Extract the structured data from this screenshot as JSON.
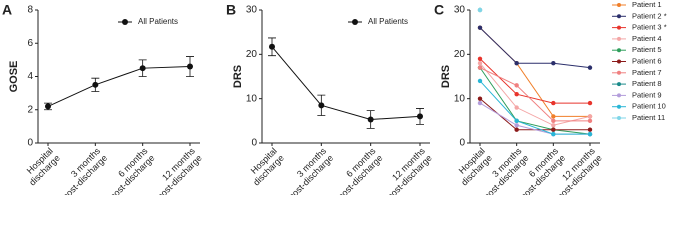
{
  "chart_data": [
    {
      "type": "line",
      "panel": "A",
      "ylabel": "GOSE",
      "categories": [
        [
          "Hospital",
          "discharge"
        ],
        [
          "3 months",
          "post-discharge"
        ],
        [
          "6 months",
          "post-discharge"
        ],
        [
          "12 months",
          "post-discharge"
        ]
      ],
      "ylim": [
        0,
        8
      ],
      "yticks": [
        0,
        2,
        4,
        6,
        8
      ],
      "legend": "upper right",
      "series": [
        {
          "name": "All Patients",
          "color": "#111111",
          "values": [
            2.2,
            3.5,
            4.5,
            4.6
          ],
          "errors": [
            0.2,
            0.4,
            0.5,
            0.6
          ]
        }
      ]
    },
    {
      "type": "line",
      "panel": "B",
      "ylabel": "DRS",
      "categories": [
        [
          "Hospital",
          "discharge"
        ],
        [
          "3 months",
          "post-discharge"
        ],
        [
          "6 months",
          "post-discharge"
        ],
        [
          "12 months",
          "post-discharge"
        ]
      ],
      "ylim": [
        0,
        30
      ],
      "yticks": [
        0,
        10,
        20,
        30
      ],
      "legend": "upper right",
      "series": [
        {
          "name": "All Patients",
          "color": "#111111",
          "values": [
            21.7,
            8.5,
            5.3,
            6.0
          ],
          "errors": [
            2.0,
            2.3,
            2.0,
            1.8
          ]
        }
      ]
    },
    {
      "type": "line",
      "panel": "C",
      "ylabel": "DRS",
      "categories": [
        [
          "Hospital",
          "discharge"
        ],
        [
          "3 months",
          "post-discharge"
        ],
        [
          "6 months",
          "post-discharge"
        ],
        [
          "12 months",
          "post-discharge"
        ]
      ],
      "ylim": [
        0,
        30
      ],
      "yticks": [
        0,
        10,
        20,
        30
      ],
      "legend": "outside right",
      "series": [
        {
          "name": "Patient 1",
          "color": "#f07f2a",
          "values": [
            26,
            18,
            6,
            6
          ]
        },
        {
          "name": "Patient 2 *",
          "color": "#2b2f6b",
          "values": [
            26,
            18,
            18,
            17
          ]
        },
        {
          "name": "Patient 3 *",
          "color": "#e8342c",
          "values": [
            19,
            11,
            9,
            9
          ]
        },
        {
          "name": "Patient 4",
          "color": "#f4a6a6",
          "values": [
            18,
            8,
            4,
            6
          ]
        },
        {
          "name": "Patient 5",
          "color": "#2e9e5b",
          "values": [
            17,
            5,
            3,
            2
          ]
        },
        {
          "name": "Patient 6",
          "color": "#8b1a1a",
          "values": [
            10,
            3,
            3,
            3
          ]
        },
        {
          "name": "Patient 7",
          "color": "#f08080",
          "values": [
            17,
            13,
            5,
            5
          ]
        },
        {
          "name": "Patient 8",
          "color": "#1a8a8a",
          "values": [
            30,
            null,
            null,
            null
          ]
        },
        {
          "name": "Patient 9",
          "color": "#b39ddb",
          "values": [
            9,
            4,
            2,
            2
          ]
        },
        {
          "name": "Patient 10",
          "color": "#29b6d6",
          "values": [
            14,
            5,
            2,
            2
          ]
        },
        {
          "name": "Patient 11",
          "color": "#7fd6e8",
          "values": [
            30,
            null,
            null,
            null
          ]
        }
      ]
    }
  ]
}
